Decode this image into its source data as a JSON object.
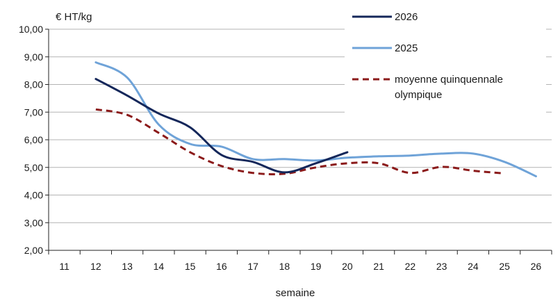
{
  "chart_data": {
    "type": "line",
    "ylabel": "€ HT/kg",
    "xlabel": "semaine",
    "ylim": [
      2,
      10
    ],
    "xlim": [
      11,
      26
    ],
    "yticks": [
      "2,00",
      "3,00",
      "4,00",
      "5,00",
      "6,00",
      "7,00",
      "8,00",
      "9,00",
      "10,00"
    ],
    "xticks": [
      "11",
      "12",
      "13",
      "14",
      "15",
      "16",
      "17",
      "18",
      "19",
      "20",
      "21",
      "22",
      "23",
      "24",
      "25",
      "26"
    ],
    "grid": "horizontal",
    "legend_position": "top-right",
    "series": [
      {
        "name": "2026",
        "color": "#14275a",
        "style": "solid",
        "x": [
          12,
          13,
          14,
          15,
          16,
          17,
          18,
          19,
          20
        ],
        "y": [
          8.2,
          7.6,
          6.95,
          6.45,
          5.45,
          5.2,
          4.82,
          5.15,
          5.55
        ]
      },
      {
        "name": "2025",
        "color": "#6fa3d8",
        "style": "solid",
        "x": [
          12,
          13,
          14,
          15,
          16,
          17,
          18,
          19,
          20,
          21,
          22,
          23,
          24,
          25,
          26
        ],
        "y": [
          8.8,
          8.25,
          6.55,
          5.85,
          5.75,
          5.3,
          5.3,
          5.25,
          5.35,
          5.4,
          5.43,
          5.5,
          5.5,
          5.2,
          4.68
        ]
      },
      {
        "name": "moyenne quinquennale olympique",
        "color": "#8b1a1a",
        "style": "dashed",
        "x": [
          12,
          13,
          14,
          15,
          16,
          17,
          18,
          19,
          20,
          21,
          22,
          23,
          24,
          25
        ],
        "y": [
          7.1,
          6.9,
          6.25,
          5.55,
          5.05,
          4.8,
          4.77,
          5.0,
          5.15,
          5.15,
          4.8,
          5.02,
          4.88,
          4.78
        ]
      }
    ]
  }
}
